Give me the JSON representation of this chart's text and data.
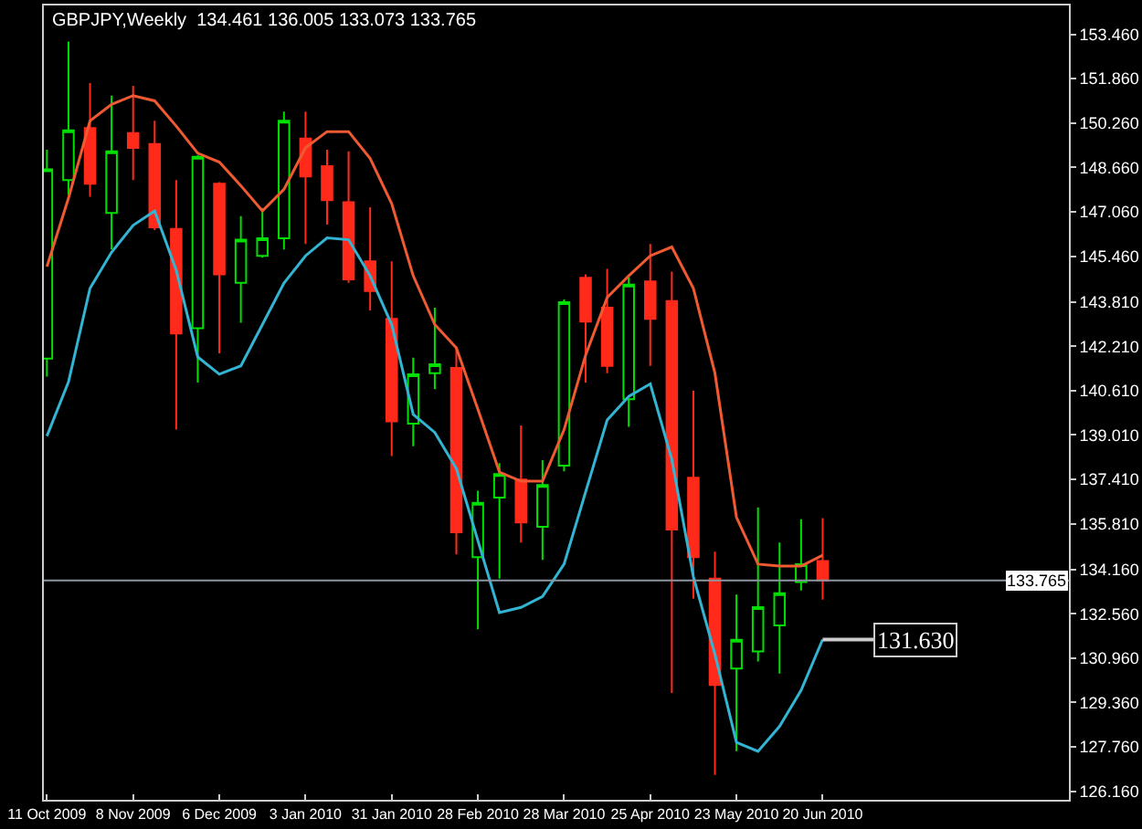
{
  "chart_data": {
    "type": "candlestick",
    "title": "GBPJPY,Weekly  134.461 136.005 133.073 133.765",
    "x": [
      "2009-10-11",
      "2009-10-18",
      "2009-10-25",
      "2009-11-01",
      "2009-11-08",
      "2009-11-15",
      "2009-11-22",
      "2009-11-29",
      "2009-12-06",
      "2009-12-13",
      "2009-12-20",
      "2009-12-27",
      "2010-01-03",
      "2010-01-10",
      "2010-01-17",
      "2010-01-24",
      "2010-01-31",
      "2010-02-07",
      "2010-02-14",
      "2010-02-21",
      "2010-02-28",
      "2010-03-07",
      "2010-03-14",
      "2010-03-21",
      "2010-03-28",
      "2010-04-04",
      "2010-04-11",
      "2010-04-18",
      "2010-04-25",
      "2010-05-02",
      "2010-05-09",
      "2010-05-16",
      "2010-05-23",
      "2010-05-30",
      "2010-06-06",
      "2010-06-13",
      "2010-06-20"
    ],
    "ohlc": [
      [
        141.76,
        149.3,
        141.11,
        148.59
      ],
      [
        148.2,
        153.2,
        147.67,
        150.0
      ],
      [
        150.08,
        151.7,
        147.6,
        148.07
      ],
      [
        147.02,
        151.25,
        145.7,
        149.24
      ],
      [
        149.9,
        151.6,
        148.2,
        149.36
      ],
      [
        149.5,
        150.34,
        146.4,
        146.5
      ],
      [
        146.44,
        148.2,
        139.2,
        142.67
      ],
      [
        142.86,
        149.1,
        140.9,
        149.04
      ],
      [
        148.07,
        148.13,
        141.95,
        144.8
      ],
      [
        144.5,
        146.9,
        143.06,
        146.05
      ],
      [
        145.47,
        147.2,
        145.4,
        146.1
      ],
      [
        146.1,
        150.67,
        145.7,
        150.34
      ],
      [
        149.7,
        150.67,
        145.9,
        148.33
      ],
      [
        148.7,
        149.3,
        146.6,
        147.48
      ],
      [
        147.4,
        149.24,
        144.5,
        144.62
      ],
      [
        145.27,
        147.22,
        143.5,
        144.2
      ],
      [
        143.2,
        145.27,
        138.25,
        139.5
      ],
      [
        139.42,
        141.8,
        138.6,
        141.2
      ],
      [
        141.24,
        143.6,
        140.66,
        141.56
      ],
      [
        141.43,
        142.2,
        134.7,
        135.5
      ],
      [
        134.6,
        137.0,
        132.0,
        136.56
      ],
      [
        136.75,
        137.99,
        133.83,
        137.6
      ],
      [
        137.4,
        139.35,
        135.13,
        135.85
      ],
      [
        135.7,
        138.1,
        134.5,
        137.2
      ],
      [
        137.9,
        143.9,
        137.7,
        143.8
      ],
      [
        144.68,
        144.8,
        140.9,
        143.1
      ],
      [
        143.6,
        145.0,
        141.24,
        141.5
      ],
      [
        140.3,
        144.7,
        139.3,
        144.43
      ],
      [
        144.55,
        145.9,
        141.5,
        143.2
      ],
      [
        143.84,
        144.9,
        129.7,
        135.6
      ],
      [
        137.47,
        140.6,
        133.1,
        134.6
      ],
      [
        133.83,
        134.8,
        126.75,
        129.99
      ],
      [
        130.58,
        133.25,
        127.6,
        131.62
      ],
      [
        131.2,
        136.4,
        130.84,
        132.8
      ],
      [
        132.14,
        135.13,
        130.4,
        133.3
      ],
      [
        133.7,
        135.97,
        133.4,
        134.35
      ],
      [
        134.461,
        136.005,
        133.073,
        133.765
      ]
    ],
    "series": [
      {
        "type": "line",
        "color": "#f05a32",
        "values": [
          145.08,
          147.55,
          150.34,
          150.93,
          151.25,
          151.06,
          150.15,
          149.17,
          148.85,
          148.0,
          147.09,
          147.87,
          149.37,
          149.95,
          149.95,
          148.98,
          147.35,
          144.75,
          142.99,
          142.15,
          139.94,
          137.67,
          137.34,
          137.34,
          139.2,
          141.89,
          143.97,
          144.75,
          145.47,
          145.79,
          144.3,
          141.24,
          136.04,
          134.35,
          134.28,
          134.28,
          134.67
        ]
      },
      {
        "type": "line",
        "color": "#32b4d2",
        "values": [
          138.97,
          140.92,
          144.3,
          145.6,
          146.57,
          147.09,
          144.95,
          141.82,
          141.2,
          141.5,
          142.99,
          144.49,
          145.47,
          146.12,
          146.05,
          144.75,
          142.99,
          139.75,
          139.1,
          137.8,
          135.2,
          132.6,
          132.79,
          133.18,
          134.35,
          136.95,
          139.55,
          140.4,
          140.85,
          138.12,
          133.9,
          131.1,
          127.92,
          127.6,
          128.5,
          129.8,
          131.63
        ]
      }
    ],
    "ylim": [
      125.85,
      154.5
    ],
    "yticks": [
      {
        "value": 126.16,
        "label": "126.160"
      },
      {
        "value": 127.76,
        "label": "127.760"
      },
      {
        "value": 129.36,
        "label": "129.360"
      },
      {
        "value": 130.96,
        "label": "130.960"
      },
      {
        "value": 132.56,
        "label": "132.560"
      },
      {
        "value": 134.16,
        "label": "134.160"
      },
      {
        "value": 135.81,
        "label": "135.810"
      },
      {
        "value": 137.41,
        "label": "137.410"
      },
      {
        "value": 139.01,
        "label": "139.010"
      },
      {
        "value": 140.61,
        "label": "140.610"
      },
      {
        "value": 142.21,
        "label": "142.210"
      },
      {
        "value": 143.81,
        "label": "143.810"
      },
      {
        "value": 145.46,
        "label": "145.460"
      },
      {
        "value": 147.06,
        "label": "147.060"
      },
      {
        "value": 148.66,
        "label": "148.660"
      },
      {
        "value": 150.26,
        "label": "150.260"
      },
      {
        "value": 151.86,
        "label": "151.860"
      },
      {
        "value": 153.46,
        "label": "153.460"
      }
    ],
    "xlim": [
      "2009-10-10",
      "2010-09-08"
    ],
    "xticks": [
      {
        "value": "2009-10-11",
        "label": "11 Oct 2009"
      },
      {
        "value": "2009-11-08",
        "label": "8 Nov 2009"
      },
      {
        "value": "2009-12-06",
        "label": "6 Dec 2009"
      },
      {
        "value": "2010-01-03",
        "label": "3 Jan 2010"
      },
      {
        "value": "2010-01-31",
        "label": "31 Jan 2010"
      },
      {
        "value": "2010-02-28",
        "label": "28 Feb 2010"
      },
      {
        "value": "2010-03-28",
        "label": "28 Mar 2010"
      },
      {
        "value": "2010-04-25",
        "label": "25 Apr 2010"
      },
      {
        "value": "2010-05-23",
        "label": "23 May 2010"
      },
      {
        "value": "2010-06-20",
        "label": "20 Jun 2010"
      }
    ],
    "ref_lines": [
      {
        "axis": "y",
        "value": 133.765,
        "label": "133.765",
        "color": "#8c96a0"
      }
    ],
    "annotations": [
      {
        "text": "131.630",
        "x": "2010-06-20",
        "y": 131.63
      }
    ],
    "grid": false
  }
}
